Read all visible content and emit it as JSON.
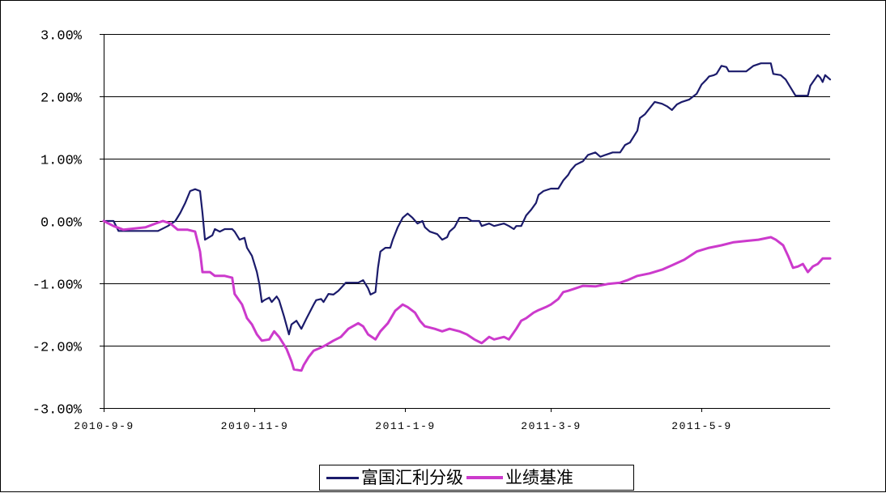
{
  "chart_data": {
    "type": "line",
    "x_scale": "date",
    "xlim": [
      "2010-9-9",
      "2011-6-30"
    ],
    "xticks": [
      "2010-9-9",
      "2010-11-9",
      "2011-1-9",
      "2011-3-9",
      "2011-5-9"
    ],
    "ylim": [
      -3,
      3
    ],
    "yticks": [
      3,
      2,
      1,
      0,
      -1,
      -2,
      -3
    ],
    "ytick_labels": [
      "3.00%",
      "2.00%",
      "1.00%",
      "0.00%",
      "-1.00%",
      "-2.00%",
      "-3.00%"
    ],
    "grid": {
      "horizontal": true,
      "vertical": false
    },
    "legend": "bottom-center",
    "series": [
      {
        "name": "富国汇利分级",
        "color": "#1b1b6b",
        "points": [
          [
            "2010-9-9",
            0.0
          ],
          [
            "2010-9-13",
            0.0
          ],
          [
            "2010-9-15",
            -0.16
          ],
          [
            "2010-10-1",
            -0.16
          ],
          [
            "2010-10-5",
            -0.08
          ],
          [
            "2010-10-8",
            0.0
          ],
          [
            "2010-10-10",
            0.13
          ],
          [
            "2010-10-12",
            0.29
          ],
          [
            "2010-10-14",
            0.48
          ],
          [
            "2010-10-16",
            0.51
          ],
          [
            "2010-10-18",
            0.48
          ],
          [
            "2010-10-19",
            0.13
          ],
          [
            "2010-10-20",
            -0.3
          ],
          [
            "2010-10-23",
            -0.23
          ],
          [
            "2010-10-24",
            -0.13
          ],
          [
            "2010-10-26",
            -0.17
          ],
          [
            "2010-10-28",
            -0.13
          ],
          [
            "2010-10-31",
            -0.13
          ],
          [
            "2010-11-1",
            -0.17
          ],
          [
            "2010-11-3",
            -0.3
          ],
          [
            "2010-11-5",
            -0.27
          ],
          [
            "2010-11-6",
            -0.43
          ],
          [
            "2010-11-8",
            -0.56
          ],
          [
            "2010-11-10",
            -0.82
          ],
          [
            "2010-11-11",
            -1.01
          ],
          [
            "2010-11-12",
            -1.3
          ],
          [
            "2010-11-13",
            -1.27
          ],
          [
            "2010-11-15",
            -1.23
          ],
          [
            "2010-11-16",
            -1.3
          ],
          [
            "2010-11-18",
            -1.21
          ],
          [
            "2010-11-19",
            -1.27
          ],
          [
            "2010-11-21",
            -1.53
          ],
          [
            "2010-11-23",
            -1.82
          ],
          [
            "2010-11-24",
            -1.66
          ],
          [
            "2010-11-26",
            -1.6
          ],
          [
            "2010-11-28",
            -1.73
          ],
          [
            "2010-11-30",
            -1.57
          ],
          [
            "2010-12-3",
            -1.34
          ],
          [
            "2010-12-4",
            -1.27
          ],
          [
            "2010-12-6",
            -1.25
          ],
          [
            "2010-12-7",
            -1.3
          ],
          [
            "2010-12-9",
            -1.17
          ],
          [
            "2010-12-11",
            -1.18
          ],
          [
            "2010-12-13",
            -1.12
          ],
          [
            "2010-12-16",
            -0.99
          ],
          [
            "2010-12-19",
            -0.99
          ],
          [
            "2010-12-21",
            -0.99
          ],
          [
            "2010-12-23",
            -0.95
          ],
          [
            "2010-12-25",
            -1.08
          ],
          [
            "2010-12-26",
            -1.18
          ],
          [
            "2010-12-28",
            -1.14
          ],
          [
            "2010-12-29",
            -0.75
          ],
          [
            "2010-12-30",
            -0.49
          ],
          [
            "2011-1-1",
            -0.43
          ],
          [
            "2011-1-3",
            -0.43
          ],
          [
            "2011-1-4",
            -0.3
          ],
          [
            "2011-1-6",
            -0.1
          ],
          [
            "2011-1-8",
            0.05
          ],
          [
            "2011-1-10",
            0.12
          ],
          [
            "2011-1-12",
            0.05
          ],
          [
            "2011-1-14",
            -0.04
          ],
          [
            "2011-1-16",
            0.0
          ],
          [
            "2011-1-17",
            -0.1
          ],
          [
            "2011-1-19",
            -0.17
          ],
          [
            "2011-1-22",
            -0.21
          ],
          [
            "2011-1-24",
            -0.3
          ],
          [
            "2011-1-26",
            -0.26
          ],
          [
            "2011-1-27",
            -0.17
          ],
          [
            "2011-1-29",
            -0.1
          ],
          [
            "2011-1-31",
            0.05
          ],
          [
            "2011-2-3",
            0.05
          ],
          [
            "2011-2-5",
            0.0
          ],
          [
            "2011-2-8",
            0.0
          ],
          [
            "2011-2-9",
            -0.08
          ],
          [
            "2011-2-12",
            -0.04
          ],
          [
            "2011-2-14",
            -0.08
          ],
          [
            "2011-2-18",
            -0.04
          ],
          [
            "2011-2-20",
            -0.08
          ],
          [
            "2011-2-22",
            -0.13
          ],
          [
            "2011-2-23",
            -0.08
          ],
          [
            "2011-2-25",
            -0.08
          ],
          [
            "2011-2-27",
            0.09
          ],
          [
            "2011-3-1",
            0.18
          ],
          [
            "2011-3-3",
            0.29
          ],
          [
            "2011-3-4",
            0.42
          ],
          [
            "2011-3-6",
            0.48
          ],
          [
            "2011-3-9",
            0.52
          ],
          [
            "2011-3-12",
            0.52
          ],
          [
            "2011-3-14",
            0.65
          ],
          [
            "2011-3-16",
            0.74
          ],
          [
            "2011-3-17",
            0.81
          ],
          [
            "2011-3-19",
            0.9
          ],
          [
            "2011-3-22",
            0.96
          ],
          [
            "2011-3-24",
            1.06
          ],
          [
            "2011-3-27",
            1.1
          ],
          [
            "2011-3-29",
            1.03
          ],
          [
            "2011-3-31",
            1.06
          ],
          [
            "2011-4-3",
            1.1
          ],
          [
            "2011-4-6",
            1.1
          ],
          [
            "2011-4-8",
            1.22
          ],
          [
            "2011-4-10",
            1.26
          ],
          [
            "2011-4-13",
            1.45
          ],
          [
            "2011-4-14",
            1.65
          ],
          [
            "2011-4-16",
            1.71
          ],
          [
            "2011-4-18",
            1.81
          ],
          [
            "2011-4-20",
            1.91
          ],
          [
            "2011-4-23",
            1.88
          ],
          [
            "2011-4-25",
            1.84
          ],
          [
            "2011-4-27",
            1.78
          ],
          [
            "2011-4-29",
            1.87
          ],
          [
            "2011-5-1",
            1.91
          ],
          [
            "2011-5-4",
            1.95
          ],
          [
            "2011-5-7",
            2.04
          ],
          [
            "2011-5-9",
            2.19
          ],
          [
            "2011-5-11",
            2.27
          ],
          [
            "2011-5-12",
            2.32
          ],
          [
            "2011-5-14",
            2.34
          ],
          [
            "2011-5-15",
            2.36
          ],
          [
            "2011-5-17",
            2.49
          ],
          [
            "2011-5-19",
            2.47
          ],
          [
            "2011-5-20",
            2.4
          ],
          [
            "2011-5-24",
            2.4
          ],
          [
            "2011-5-27",
            2.4
          ],
          [
            "2011-5-30",
            2.49
          ],
          [
            "2011-6-2",
            2.53
          ],
          [
            "2011-6-6",
            2.53
          ],
          [
            "2011-6-7",
            2.36
          ],
          [
            "2011-6-10",
            2.34
          ],
          [
            "2011-6-12",
            2.27
          ],
          [
            "2011-6-14",
            2.14
          ],
          [
            "2011-6-16",
            2.01
          ],
          [
            "2011-6-19",
            2.01
          ],
          [
            "2011-6-21",
            2.01
          ],
          [
            "2011-6-22",
            2.17
          ],
          [
            "2011-6-25",
            2.34
          ],
          [
            "2011-6-26",
            2.3
          ],
          [
            "2011-6-27",
            2.23
          ],
          [
            "2011-6-28",
            2.34
          ],
          [
            "2011-6-30",
            2.27
          ]
        ]
      },
      {
        "name": "业绩基准",
        "color": "#cc3acc",
        "points": [
          [
            "2010-9-9",
            0.0
          ],
          [
            "2010-9-13",
            -0.08
          ],
          [
            "2010-9-17",
            -0.14
          ],
          [
            "2010-9-26",
            -0.1
          ],
          [
            "2010-9-30",
            -0.04
          ],
          [
            "2010-10-3",
            0.0
          ],
          [
            "2010-10-6",
            -0.04
          ],
          [
            "2010-10-9",
            -0.14
          ],
          [
            "2010-10-13",
            -0.14
          ],
          [
            "2010-10-16",
            -0.17
          ],
          [
            "2010-10-18",
            -0.49
          ],
          [
            "2010-10-19",
            -0.82
          ],
          [
            "2010-10-22",
            -0.82
          ],
          [
            "2010-10-24",
            -0.88
          ],
          [
            "2010-10-28",
            -0.88
          ],
          [
            "2010-10-31",
            -0.91
          ],
          [
            "2010-11-1",
            -1.17
          ],
          [
            "2010-11-4",
            -1.34
          ],
          [
            "2010-11-6",
            -1.56
          ],
          [
            "2010-11-8",
            -1.66
          ],
          [
            "2010-11-10",
            -1.82
          ],
          [
            "2010-11-12",
            -1.92
          ],
          [
            "2010-11-15",
            -1.9
          ],
          [
            "2010-11-17",
            -1.77
          ],
          [
            "2010-11-19",
            -1.86
          ],
          [
            "2010-11-22",
            -2.05
          ],
          [
            "2010-11-24",
            -2.25
          ],
          [
            "2010-11-25",
            -2.38
          ],
          [
            "2010-11-28",
            -2.4
          ],
          [
            "2010-11-29",
            -2.31
          ],
          [
            "2010-12-1",
            -2.18
          ],
          [
            "2010-12-3",
            -2.08
          ],
          [
            "2010-12-6",
            -2.03
          ],
          [
            "2010-12-8",
            -1.99
          ],
          [
            "2010-12-11",
            -1.92
          ],
          [
            "2010-12-14",
            -1.86
          ],
          [
            "2010-12-17",
            -1.73
          ],
          [
            "2010-12-21",
            -1.64
          ],
          [
            "2010-12-23",
            -1.69
          ],
          [
            "2010-12-25",
            -1.82
          ],
          [
            "2010-12-28",
            -1.9
          ],
          [
            "2010-12-30",
            -1.77
          ],
          [
            "2011-1-2",
            -1.64
          ],
          [
            "2011-1-5",
            -1.44
          ],
          [
            "2011-1-8",
            -1.34
          ],
          [
            "2011-1-10",
            -1.38
          ],
          [
            "2011-1-13",
            -1.47
          ],
          [
            "2011-1-15",
            -1.6
          ],
          [
            "2011-1-17",
            -1.69
          ],
          [
            "2011-1-21",
            -1.73
          ],
          [
            "2011-1-24",
            -1.77
          ],
          [
            "2011-1-27",
            -1.73
          ],
          [
            "2011-1-31",
            -1.77
          ],
          [
            "2011-2-3",
            -1.82
          ],
          [
            "2011-2-6",
            -1.9
          ],
          [
            "2011-2-9",
            -1.96
          ],
          [
            "2011-2-12",
            -1.86
          ],
          [
            "2011-2-14",
            -1.9
          ],
          [
            "2011-2-18",
            -1.86
          ],
          [
            "2011-2-20",
            -1.9
          ],
          [
            "2011-2-23",
            -1.73
          ],
          [
            "2011-2-25",
            -1.6
          ],
          [
            "2011-2-27",
            -1.56
          ],
          [
            "2011-3-2",
            -1.47
          ],
          [
            "2011-3-4",
            -1.43
          ],
          [
            "2011-3-7",
            -1.38
          ],
          [
            "2011-3-9",
            -1.34
          ],
          [
            "2011-3-12",
            -1.25
          ],
          [
            "2011-3-14",
            -1.14
          ],
          [
            "2011-3-16",
            -1.12
          ],
          [
            "2011-3-19",
            -1.08
          ],
          [
            "2011-3-22",
            -1.04
          ],
          [
            "2011-3-27",
            -1.05
          ],
          [
            "2011-4-1",
            -1.01
          ],
          [
            "2011-4-6",
            -0.99
          ],
          [
            "2011-4-9",
            -0.95
          ],
          [
            "2011-4-13",
            -0.88
          ],
          [
            "2011-4-18",
            -0.84
          ],
          [
            "2011-4-23",
            -0.78
          ],
          [
            "2011-4-27",
            -0.71
          ],
          [
            "2011-5-2",
            -0.62
          ],
          [
            "2011-5-7",
            -0.49
          ],
          [
            "2011-5-12",
            -0.43
          ],
          [
            "2011-5-17",
            -0.39
          ],
          [
            "2011-5-22",
            -0.34
          ],
          [
            "2011-5-27",
            -0.32
          ],
          [
            "2011-6-1",
            -0.3
          ],
          [
            "2011-6-6",
            -0.26
          ],
          [
            "2011-6-8",
            -0.3
          ],
          [
            "2011-6-11",
            -0.39
          ],
          [
            "2011-6-13",
            -0.56
          ],
          [
            "2011-6-15",
            -0.75
          ],
          [
            "2011-6-17",
            -0.73
          ],
          [
            "2011-6-19",
            -0.69
          ],
          [
            "2011-6-21",
            -0.82
          ],
          [
            "2011-6-23",
            -0.73
          ],
          [
            "2011-6-25",
            -0.69
          ],
          [
            "2011-6-27",
            -0.6
          ],
          [
            "2011-6-30",
            -0.6
          ]
        ]
      }
    ]
  }
}
